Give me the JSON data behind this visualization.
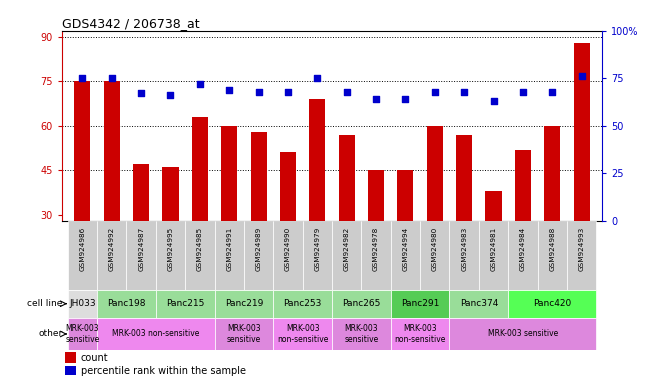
{
  "title": "GDS4342 / 206738_at",
  "gsm_labels": [
    "GSM924986",
    "GSM924992",
    "GSM924987",
    "GSM924995",
    "GSM924985",
    "GSM924991",
    "GSM924989",
    "GSM924990",
    "GSM924979",
    "GSM924982",
    "GSM924978",
    "GSM924994",
    "GSM924980",
    "GSM924983",
    "GSM924981",
    "GSM924984",
    "GSM924988",
    "GSM924993"
  ],
  "bar_values": [
    75,
    75,
    47,
    46,
    63,
    60,
    58,
    51,
    69,
    57,
    45,
    45,
    60,
    57,
    38,
    52,
    60,
    88
  ],
  "percentile_values": [
    75,
    75,
    67,
    66,
    72,
    69,
    68,
    68,
    75,
    68,
    64,
    64,
    68,
    68,
    63,
    68,
    68,
    76
  ],
  "ylim_left": [
    28,
    92
  ],
  "ylim_right": [
    0,
    100
  ],
  "yticks_left": [
    30,
    45,
    60,
    75,
    90
  ],
  "yticks_right": [
    0,
    25,
    50,
    75,
    100
  ],
  "bar_color": "#cc0000",
  "dot_color": "#0000cc",
  "grid_yticks": [
    45,
    60,
    75,
    90
  ],
  "cell_line_labels": [
    {
      "label": "JH033",
      "start": 0,
      "end": 1,
      "color": "#dddddd"
    },
    {
      "label": "Panc198",
      "start": 1,
      "end": 3,
      "color": "#99dd99"
    },
    {
      "label": "Panc215",
      "start": 3,
      "end": 5,
      "color": "#99dd99"
    },
    {
      "label": "Panc219",
      "start": 5,
      "end": 7,
      "color": "#99dd99"
    },
    {
      "label": "Panc253",
      "start": 7,
      "end": 9,
      "color": "#99dd99"
    },
    {
      "label": "Panc265",
      "start": 9,
      "end": 11,
      "color": "#99dd99"
    },
    {
      "label": "Panc291",
      "start": 11,
      "end": 13,
      "color": "#55cc55"
    },
    {
      "label": "Panc374",
      "start": 13,
      "end": 15,
      "color": "#99dd99"
    },
    {
      "label": "Panc420",
      "start": 15,
      "end": 18,
      "color": "#55ff55"
    }
  ],
  "other_labels": [
    {
      "label": "MRK-003\nsensitive",
      "start": 0,
      "end": 1,
      "color": "#dd88dd"
    },
    {
      "label": "MRK-003 non-sensitive",
      "start": 1,
      "end": 5,
      "color": "#ee88ee"
    },
    {
      "label": "MRK-003\nsensitive",
      "start": 5,
      "end": 7,
      "color": "#dd88dd"
    },
    {
      "label": "MRK-003\nnon-sensitive",
      "start": 7,
      "end": 9,
      "color": "#ee88ee"
    },
    {
      "label": "MRK-003\nsensitive",
      "start": 9,
      "end": 11,
      "color": "#dd88dd"
    },
    {
      "label": "MRK-003\nnon-sensitive",
      "start": 11,
      "end": 13,
      "color": "#ee88ee"
    },
    {
      "label": "MRK-003 sensitive",
      "start": 13,
      "end": 18,
      "color": "#dd88dd"
    }
  ],
  "cell_line_row_label": "cell line",
  "other_row_label": "other",
  "legend_count_color": "#cc0000",
  "legend_dot_color": "#0000cc",
  "gsm_bg_color": "#cccccc",
  "left_label_color": "#555555"
}
